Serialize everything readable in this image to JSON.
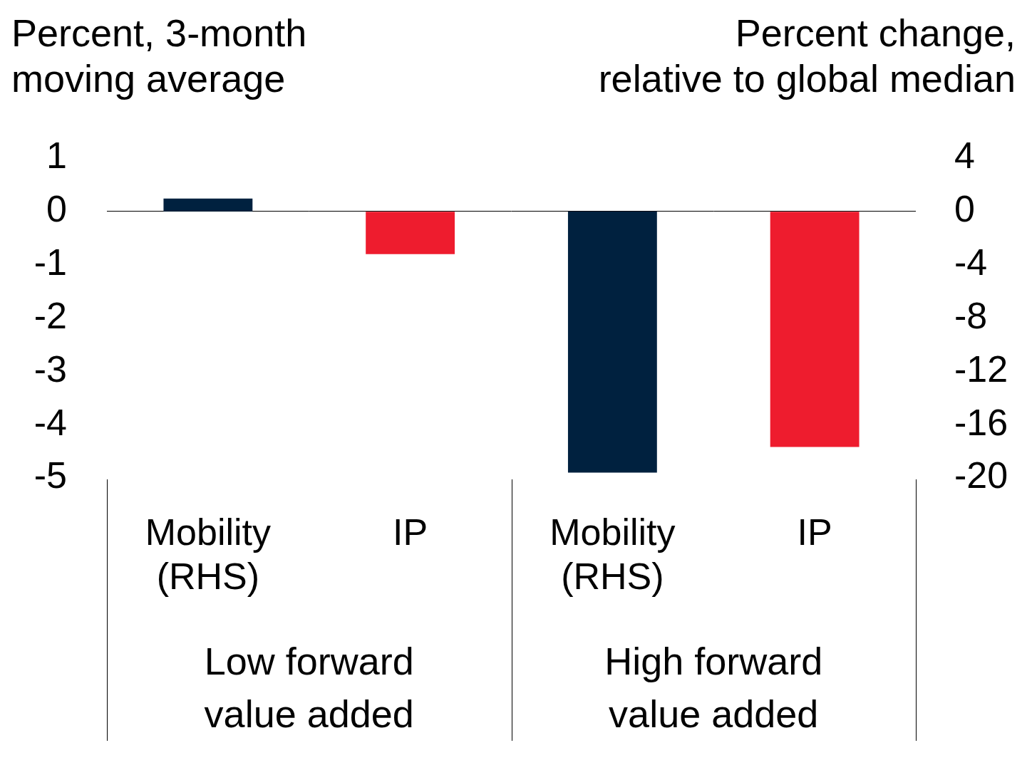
{
  "chart_data": {
    "type": "bar",
    "y_label": [
      "Percent, 3-month",
      "moving average"
    ],
    "y2_label": [
      "Percent change,",
      "relative to global median"
    ],
    "categories": [
      [
        "Mobility",
        "(RHS)"
      ],
      "IP",
      [
        "Mobility",
        "(RHS)"
      ],
      "IP"
    ],
    "groups": [
      {
        "label": [
          "Low forward",
          "value added"
        ],
        "categories": [
          0,
          1
        ]
      },
      {
        "label": [
          "High forward",
          "value added"
        ],
        "categories": [
          2,
          3
        ]
      }
    ],
    "series": [
      {
        "color": "#00213f",
        "axis": "y2",
        "values": [
          0.96,
          null,
          -19.6,
          null
        ]
      },
      {
        "color": "#ee1c2e",
        "axis": "y",
        "values": [
          null,
          -0.8,
          null,
          -4.42
        ]
      }
    ],
    "ylim": [
      -5,
      1
    ],
    "yticks": [
      -5,
      -4,
      -3,
      -2,
      -1,
      0,
      1
    ],
    "y2lim": [
      -20,
      4
    ],
    "y2ticks": [
      -20,
      -16,
      -12,
      -8,
      -4,
      0,
      4
    ],
    "grid": false
  }
}
